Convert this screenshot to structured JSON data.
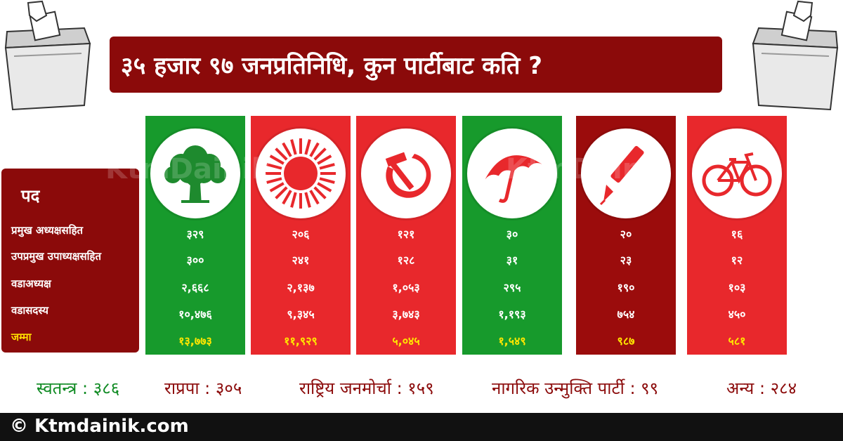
{
  "title": "३५ हजार ९७ जनप्रतिनिधि, कुन पार्टीबाट कति ?",
  "table": {
    "header": "पद",
    "rows": [
      "प्रमुख अध्यक्षसहित",
      "उपप्रमुख उपाध्यक्षसहित",
      "वडाअध्यक्ष",
      "वडासदस्य",
      "जम्मा"
    ]
  },
  "parties": [
    {
      "symbol": "tree-icon",
      "color": "#179a2c",
      "values": [
        "३२९",
        "३००",
        "२,६६८",
        "१०,४७६",
        "१३,७७३"
      ]
    },
    {
      "symbol": "sun-icon",
      "color": "#e8282c",
      "values": [
        "२०६",
        "२४१",
        "२,१३७",
        "९,३४५",
        "११,९२९"
      ]
    },
    {
      "symbol": "hammer-sickle-icon",
      "color": "#e8282c",
      "values": [
        "१२१",
        "१२८",
        "१,०५३",
        "३,७४३",
        "५,०४५"
      ]
    },
    {
      "symbol": "umbrella-icon",
      "color": "#179a2c",
      "values": [
        "३०",
        "३१",
        "२९५",
        "१,१९३",
        "१,५४९"
      ]
    },
    {
      "symbol": "pen-icon",
      "color": "#9b0c0c",
      "values": [
        "२०",
        "२३",
        "१९०",
        "७५४",
        "९८७"
      ]
    },
    {
      "symbol": "bicycle-icon",
      "color": "#e8282c",
      "values": [
        "१६",
        "१२",
        "१०३",
        "४५०",
        "५८१"
      ]
    }
  ],
  "others": [
    {
      "text": "स्वतन्त्र : ३८६",
      "color": "#0e8a22"
    },
    {
      "text": "राप्रपा : ३०५",
      "color": "#8b0a0a"
    },
    {
      "text": "राष्ट्रिय जनमोर्चा : १५९",
      "color": "#8b0a0a"
    },
    {
      "text": "नागरिक उन्मुक्ति पार्टी : ९९",
      "color": "#8b0a0a"
    },
    {
      "text": "अन्य : २८४",
      "color": "#8b0a0a"
    }
  ],
  "footer": "© Ktmdainik.com",
  "watermark": "KtmDainik"
}
